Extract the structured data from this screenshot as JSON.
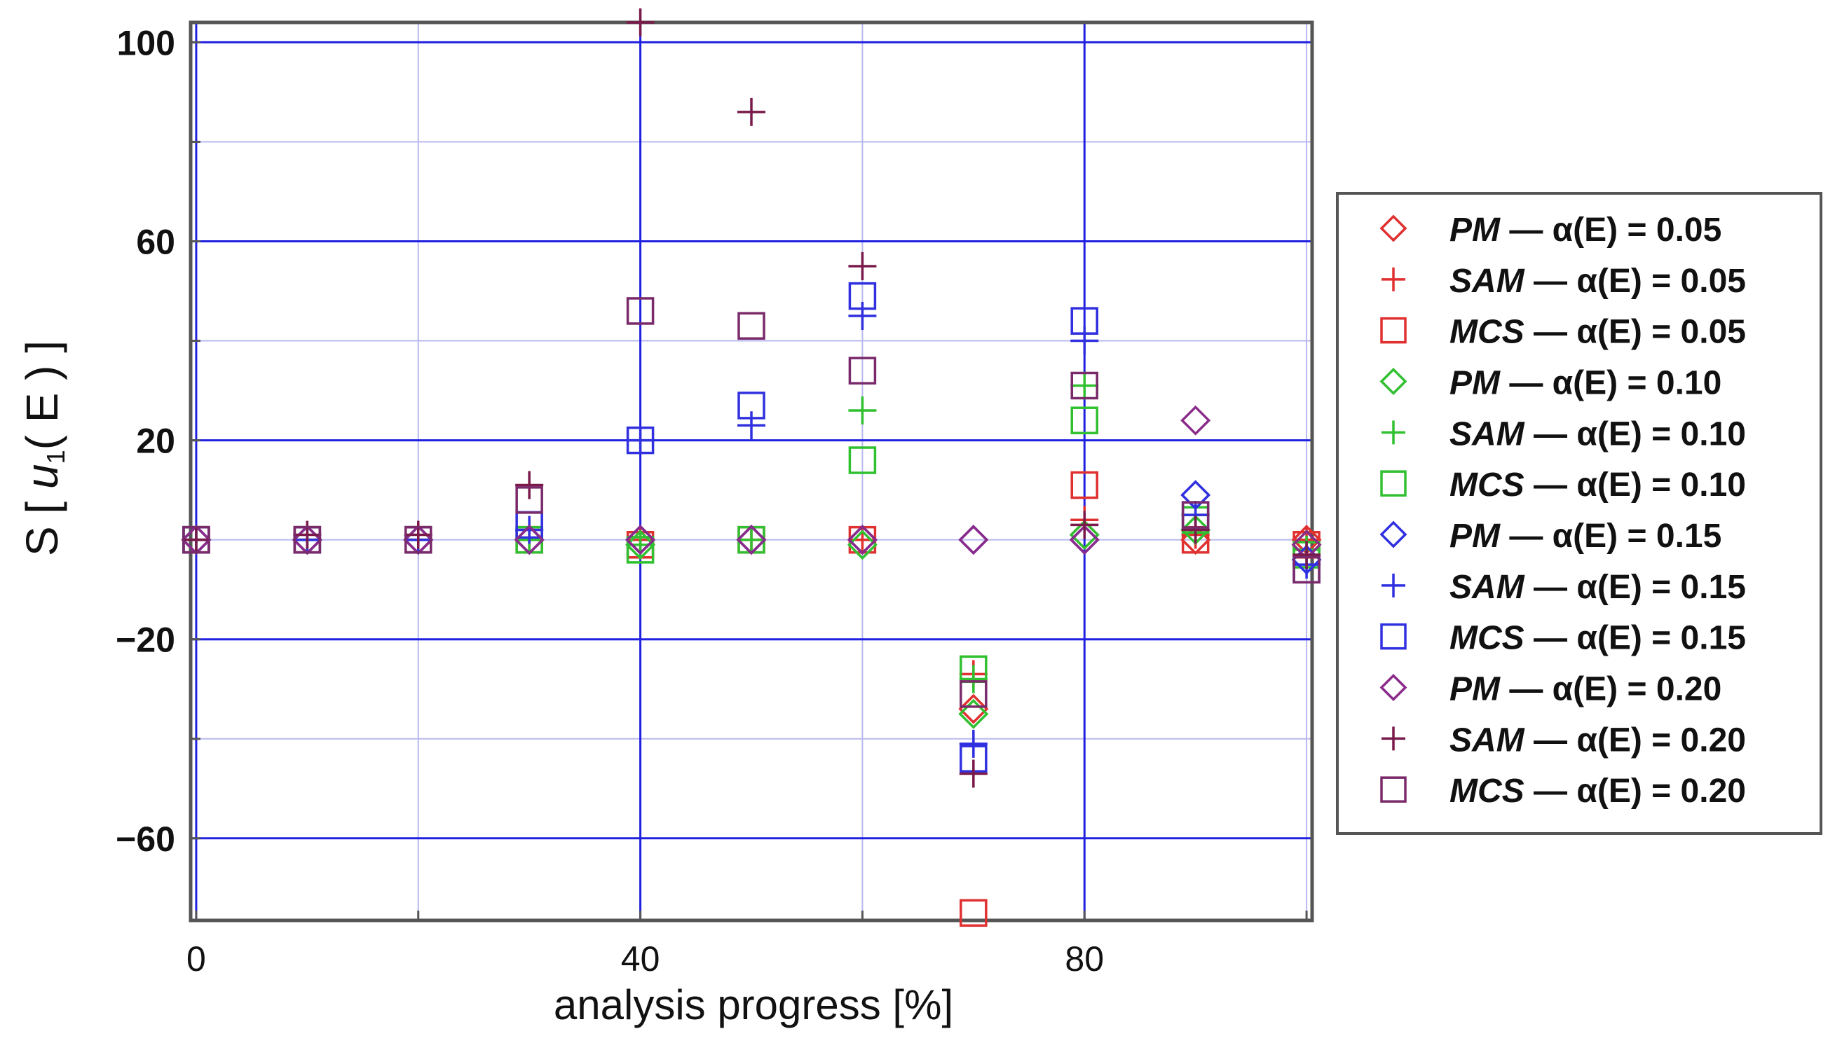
{
  "chart_data": {
    "type": "scatter",
    "title": "",
    "xlabel": "analysis progress [%]",
    "ylabel_parts": {
      "prefix": "S [ ",
      "var": "u",
      "subscript": "1",
      "suffix": "( E ) ]"
    },
    "xlim": [
      -0.5,
      100.5
    ],
    "ylim": [
      -76.5,
      104
    ],
    "x_ticks": [
      0,
      40,
      80
    ],
    "x_tick_labels": [
      "0",
      "40",
      "80"
    ],
    "y_ticks": [
      100,
      60,
      20,
      -20,
      -60
    ],
    "y_tick_labels": [
      "100",
      "60",
      "20",
      "−20",
      "−60"
    ],
    "grid": true,
    "legend_position": "right",
    "series": [
      {
        "name": "PM — α(E) = 0.05",
        "method": "PM",
        "alpha_label": "α(E) = 0.05",
        "color": "#e03030",
        "marker": "diamond",
        "x": [
          0,
          10,
          20,
          30,
          40,
          50,
          60,
          70,
          80,
          90,
          100
        ],
        "y": [
          0,
          0,
          0,
          0,
          0,
          0,
          0,
          -34,
          1,
          0,
          0
        ]
      },
      {
        "name": "SAM — α(E) = 0.05",
        "method": "SAM",
        "alpha_label": "α(E) = 0.05",
        "color": "#e03030",
        "marker": "plus",
        "x": [
          0,
          10,
          20,
          30,
          40,
          50,
          60,
          70,
          80,
          90,
          100
        ],
        "y": [
          0,
          0,
          0,
          0,
          0,
          0,
          0,
          -27,
          4,
          1,
          0
        ]
      },
      {
        "name": "MCS — α(E) = 0.05",
        "method": "MCS",
        "alpha_label": "α(E) = 0.05",
        "color": "#e03030",
        "marker": "square",
        "x": [
          0,
          10,
          20,
          30,
          40,
          50,
          60,
          70,
          80,
          90,
          100
        ],
        "y": [
          0,
          0,
          0,
          0,
          -1,
          0,
          0,
          -75,
          11,
          0,
          -1
        ]
      },
      {
        "name": "PM — α(E) = 0.10",
        "method": "PM",
        "alpha_label": "α(E) = 0.10",
        "color": "#30c030",
        "marker": "diamond",
        "x": [
          0,
          10,
          20,
          30,
          40,
          50,
          60,
          70,
          80,
          90,
          100
        ],
        "y": [
          0,
          0,
          0,
          0,
          -1,
          0,
          -1,
          -35,
          1,
          2,
          -1
        ]
      },
      {
        "name": "SAM — α(E) = 0.10",
        "method": "SAM",
        "alpha_label": "α(E) = 0.10",
        "color": "#30c030",
        "marker": "plus",
        "x": [
          0,
          10,
          20,
          30,
          40,
          50,
          60,
          70,
          80,
          90,
          100
        ],
        "y": [
          0,
          0,
          0,
          0,
          -1,
          0,
          26,
          -28,
          31,
          5,
          -2
        ]
      },
      {
        "name": "MCS — α(E) = 0.10",
        "method": "MCS",
        "alpha_label": "α(E) = 0.10",
        "color": "#30c030",
        "marker": "square",
        "x": [
          0,
          10,
          20,
          30,
          40,
          50,
          60,
          70,
          80,
          90,
          100
        ],
        "y": [
          0,
          0,
          0,
          0,
          -2,
          0,
          16,
          -26,
          24,
          4,
          -3
        ]
      },
      {
        "name": "PM — α(E) = 0.15",
        "method": "PM",
        "alpha_label": "α(E) = 0.15",
        "color": "#3030e0",
        "marker": "diamond",
        "x": [
          0,
          10,
          20,
          30,
          40,
          50,
          60,
          70,
          80,
          90,
          100
        ],
        "y": [
          0,
          0,
          0,
          0,
          0,
          0,
          0,
          0,
          0,
          9,
          -4
        ]
      },
      {
        "name": "SAM — α(E) = 0.15",
        "method": "SAM",
        "alpha_label": "α(E) = 0.15",
        "color": "#3030e0",
        "marker": "plus",
        "x": [
          0,
          10,
          20,
          30,
          40,
          50,
          60,
          70,
          80,
          90,
          100
        ],
        "y": [
          0,
          0,
          0,
          2,
          20,
          23,
          45,
          -41,
          40,
          5,
          -5
        ]
      },
      {
        "name": "MCS — α(E) = 0.15",
        "method": "MCS",
        "alpha_label": "α(E) = 0.15",
        "color": "#3030e0",
        "marker": "square",
        "x": [
          0,
          10,
          20,
          30,
          40,
          50,
          60,
          70,
          80,
          90,
          100
        ],
        "y": [
          0,
          0,
          0,
          3,
          20,
          27,
          49,
          -44,
          44,
          5,
          -6
        ]
      },
      {
        "name": "PM — α(E) = 0.20",
        "method": "PM",
        "alpha_label": "α(E) = 0.20",
        "color": "#8a2a8a",
        "marker": "diamond",
        "x": [
          0,
          10,
          20,
          30,
          40,
          50,
          60,
          70,
          80,
          90,
          100
        ],
        "y": [
          0,
          0,
          0,
          0,
          0,
          0,
          0,
          0,
          0,
          24,
          -1
        ]
      },
      {
        "name": "SAM — α(E) = 0.20",
        "method": "SAM",
        "alpha_label": "α(E) = 0.20",
        "color": "#7a1a4a",
        "marker": "plus",
        "x": [
          0,
          10,
          20,
          30,
          40,
          50,
          60,
          70,
          80,
          90,
          100
        ],
        "y": [
          0,
          1,
          1,
          11,
          104,
          86,
          55,
          -47,
          3,
          2,
          -3
        ]
      },
      {
        "name": "MCS — α(E) = 0.20",
        "method": "MCS",
        "alpha_label": "α(E) = 0.20",
        "color": "#7a2a6a",
        "marker": "square",
        "x": [
          0,
          10,
          20,
          30,
          40,
          50,
          60,
          70,
          80,
          90,
          100
        ],
        "y": [
          0,
          0,
          0,
          8,
          46,
          43,
          34,
          -31,
          31,
          5,
          -6
        ]
      }
    ]
  }
}
